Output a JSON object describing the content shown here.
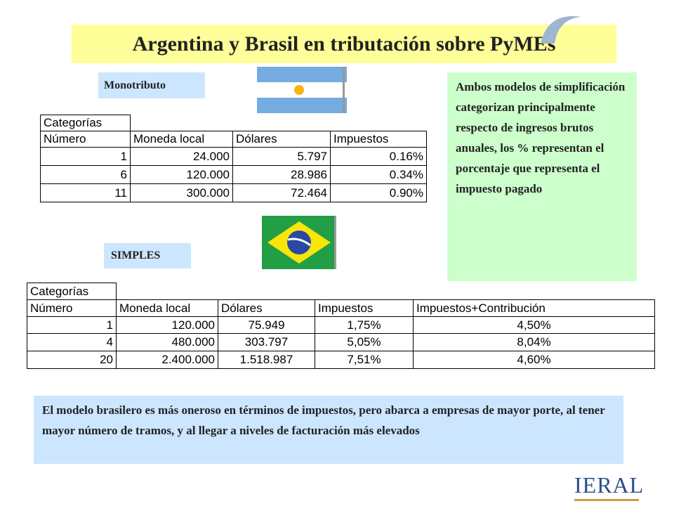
{
  "header": {
    "title": "Argentina y Brasil en tributación sobre PyMEs"
  },
  "argentina": {
    "label": "Monotributo",
    "table": {
      "group_header": "Categorías",
      "columns": [
        "Número",
        "Moneda local",
        "Dólares",
        "Impuestos"
      ],
      "rows": [
        [
          "1",
          "24.000",
          "5.797",
          "0.16%"
        ],
        [
          "6",
          "120.000",
          "28.986",
          "0.34%"
        ],
        [
          "11",
          "300.000",
          "72.464",
          "0.90%"
        ]
      ]
    }
  },
  "brasil": {
    "label": "SIMPLES",
    "table": {
      "group_header": "Categorías",
      "columns": [
        "Número",
        "Moneda local",
        "Dólares",
        "Impuestos",
        "Impuestos+Contribución"
      ],
      "rows": [
        [
          "1",
          "120.000",
          "75.949",
          "1,75%",
          "4,50%"
        ],
        [
          "4",
          "480.000",
          "303.797",
          "5,05%",
          "8,04%"
        ],
        [
          "20",
          "2.400.000",
          "1.518.987",
          "7,51%",
          "4,60%"
        ]
      ]
    }
  },
  "note": "Ambos modelos de simplificación categorizan principalmente respecto de ingresos brutos anuales, los % representan el porcentaje que representa el impuesto pagado",
  "conclusion": "El modelo brasilero es más oneroso en términos de impuestos, pero abarca a empresas de mayor porte, al tener mayor número de tramos, y al llegar a niveles de facturación más elevados",
  "logo": "IERAL"
}
